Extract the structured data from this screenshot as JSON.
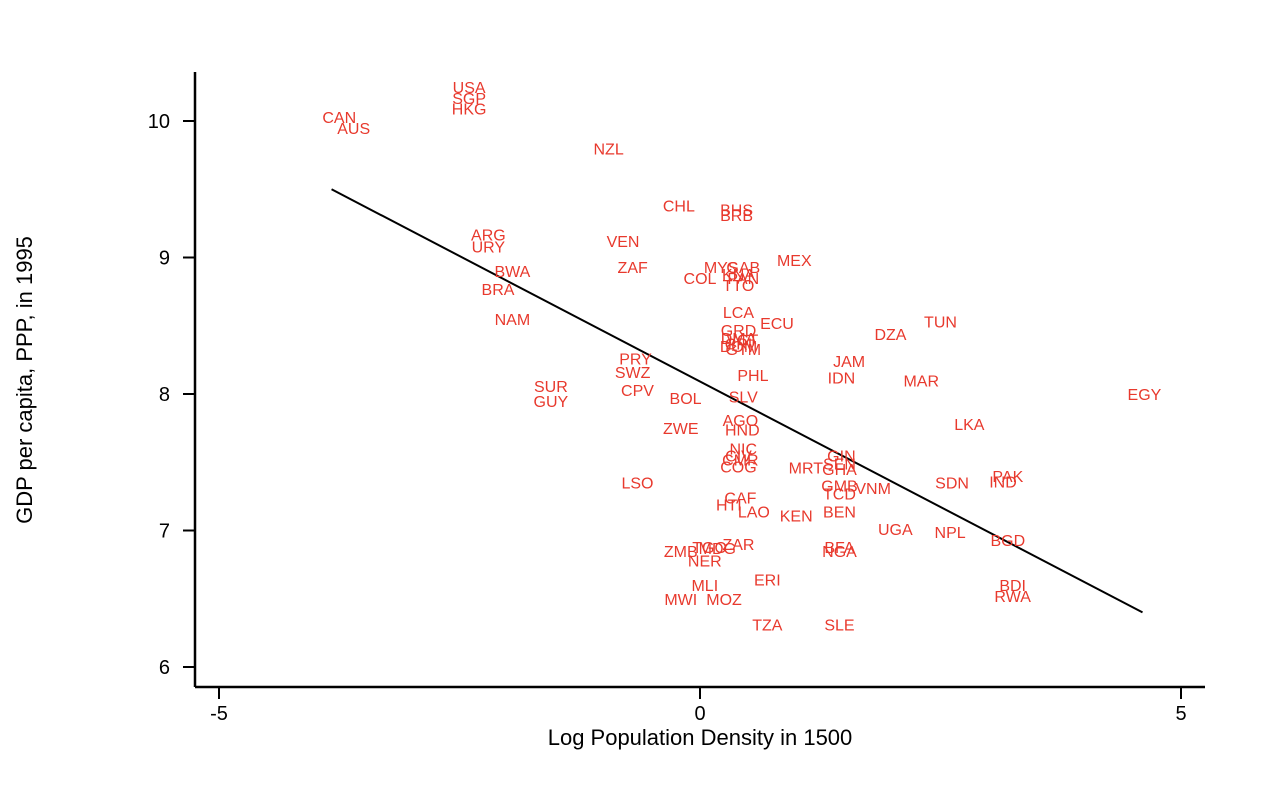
{
  "chart_data": {
    "type": "scatter",
    "xlabel": "Log Population Density in 1500",
    "ylabel": "GDP per capita, PPP, in 1995",
    "xlim": [
      -5.25,
      5.25
    ],
    "ylim": [
      5.85,
      10.4
    ],
    "xticks": [
      -5,
      0,
      5
    ],
    "xtick_labels": [
      "-5",
      "0",
      "5"
    ],
    "yticks": [
      6,
      7,
      8,
      9,
      10
    ],
    "ytick_labels": [
      "6",
      "7",
      "8",
      "9",
      "10"
    ],
    "grid": false,
    "label_color": "#e8392d",
    "line_color": "#000000",
    "fit_line": {
      "x": [
        -3.83,
        4.6
      ],
      "y": [
        9.5,
        6.4
      ]
    },
    "points": [
      {
        "label": "USA",
        "x": -2.4,
        "y": 10.25
      },
      {
        "label": "SGP",
        "x": -2.4,
        "y": 10.17
      },
      {
        "label": "HKG",
        "x": -2.4,
        "y": 10.09
      },
      {
        "label": "CAN",
        "x": -3.75,
        "y": 10.03
      },
      {
        "label": "AUS",
        "x": -3.6,
        "y": 9.95
      },
      {
        "label": "NZL",
        "x": -0.95,
        "y": 9.8
      },
      {
        "label": "CHL",
        "x": -0.22,
        "y": 9.38
      },
      {
        "label": "BHS",
        "x": 0.38,
        "y": 9.35
      },
      {
        "label": "BRB",
        "x": 0.38,
        "y": 9.31
      },
      {
        "label": "ARG",
        "x": -2.2,
        "y": 9.17
      },
      {
        "label": "URY",
        "x": -2.2,
        "y": 9.08
      },
      {
        "label": "VEN",
        "x": -0.8,
        "y": 9.12
      },
      {
        "label": "MEX",
        "x": 0.98,
        "y": 8.98
      },
      {
        "label": "MYS",
        "x": 0.22,
        "y": 8.93
      },
      {
        "label": "GAB",
        "x": 0.45,
        "y": 8.93
      },
      {
        "label": "KNA",
        "x": 0.4,
        "y": 8.88
      },
      {
        "label": "PAN",
        "x": 0.45,
        "y": 8.85
      },
      {
        "label": "TTO",
        "x": 0.4,
        "y": 8.8
      },
      {
        "label": "ZAF",
        "x": -0.7,
        "y": 8.93
      },
      {
        "label": "COL",
        "x": 0.0,
        "y": 8.85
      },
      {
        "label": "BWA",
        "x": -1.95,
        "y": 8.9
      },
      {
        "label": "BRA",
        "x": -2.1,
        "y": 8.77
      },
      {
        "label": "NAM",
        "x": -1.95,
        "y": 8.55
      },
      {
        "label": "LCA",
        "x": 0.4,
        "y": 8.6
      },
      {
        "label": "ECU",
        "x": 0.8,
        "y": 8.52
      },
      {
        "label": "TUN",
        "x": 2.5,
        "y": 8.53
      },
      {
        "label": "DZA",
        "x": 1.98,
        "y": 8.44
      },
      {
        "label": "GRD",
        "x": 0.4,
        "y": 8.47
      },
      {
        "label": "DMA",
        "x": 0.4,
        "y": 8.41
      },
      {
        "label": "VCT",
        "x": 0.44,
        "y": 8.4
      },
      {
        "label": "CRI",
        "x": 0.4,
        "y": 8.37
      },
      {
        "label": "DOM",
        "x": 0.4,
        "y": 8.35
      },
      {
        "label": "GTM",
        "x": 0.45,
        "y": 8.33
      },
      {
        "label": "PRY",
        "x": -0.67,
        "y": 8.26
      },
      {
        "label": "SWZ",
        "x": -0.7,
        "y": 8.16
      },
      {
        "label": "JAM",
        "x": 1.55,
        "y": 8.24
      },
      {
        "label": "PHL",
        "x": 0.55,
        "y": 8.14
      },
      {
        "label": "IDN",
        "x": 1.47,
        "y": 8.12
      },
      {
        "label": "MAR",
        "x": 2.3,
        "y": 8.1
      },
      {
        "label": "SUR",
        "x": -1.55,
        "y": 8.06
      },
      {
        "label": "CPV",
        "x": -0.65,
        "y": 8.03
      },
      {
        "label": "EGY",
        "x": 4.62,
        "y": 8.0
      },
      {
        "label": "BOL",
        "x": -0.15,
        "y": 7.97
      },
      {
        "label": "SLV",
        "x": 0.45,
        "y": 7.98
      },
      {
        "label": "GUY",
        "x": -1.55,
        "y": 7.95
      },
      {
        "label": "AGO",
        "x": 0.42,
        "y": 7.81
      },
      {
        "label": "LKA",
        "x": 2.8,
        "y": 7.78
      },
      {
        "label": "ZWE",
        "x": -0.2,
        "y": 7.75
      },
      {
        "label": "HND",
        "x": 0.44,
        "y": 7.74
      },
      {
        "label": "NIC",
        "x": 0.45,
        "y": 7.6
      },
      {
        "label": "CIV",
        "x": 0.4,
        "y": 7.55
      },
      {
        "label": "GIN",
        "x": 1.47,
        "y": 7.55
      },
      {
        "label": "CMR",
        "x": 0.42,
        "y": 7.52
      },
      {
        "label": "SEN",
        "x": 1.45,
        "y": 7.49
      },
      {
        "label": "COG",
        "x": 0.4,
        "y": 7.47
      },
      {
        "label": "MRT",
        "x": 1.1,
        "y": 7.46
      },
      {
        "label": "GHA",
        "x": 1.45,
        "y": 7.45
      },
      {
        "label": "PAK",
        "x": 3.2,
        "y": 7.4
      },
      {
        "label": "IND",
        "x": 3.15,
        "y": 7.36
      },
      {
        "label": "LSO",
        "x": -0.65,
        "y": 7.35
      },
      {
        "label": "SDN",
        "x": 2.62,
        "y": 7.35
      },
      {
        "label": "GMB",
        "x": 1.45,
        "y": 7.33
      },
      {
        "label": "VNM",
        "x": 1.8,
        "y": 7.31
      },
      {
        "label": "TCD",
        "x": 1.45,
        "y": 7.27
      },
      {
        "label": "CAF",
        "x": 0.42,
        "y": 7.24
      },
      {
        "label": "HTI",
        "x": 0.3,
        "y": 7.19
      },
      {
        "label": "LAO",
        "x": 0.56,
        "y": 7.14
      },
      {
        "label": "BEN",
        "x": 1.45,
        "y": 7.14
      },
      {
        "label": "KEN",
        "x": 1.0,
        "y": 7.11
      },
      {
        "label": "UGA",
        "x": 2.03,
        "y": 7.01
      },
      {
        "label": "NPL",
        "x": 2.6,
        "y": 6.99
      },
      {
        "label": "BGD",
        "x": 3.2,
        "y": 6.93
      },
      {
        "label": "ZAR",
        "x": 0.4,
        "y": 6.9
      },
      {
        "label": "BFA",
        "x": 1.45,
        "y": 6.88
      },
      {
        "label": "TGO",
        "x": 0.1,
        "y": 6.88
      },
      {
        "label": "MDG",
        "x": 0.18,
        "y": 6.87
      },
      {
        "label": "ZMB",
        "x": -0.2,
        "y": 6.85
      },
      {
        "label": "NGA",
        "x": 1.45,
        "y": 6.85
      },
      {
        "label": "NER",
        "x": 0.05,
        "y": 6.78
      },
      {
        "label": "ERI",
        "x": 0.7,
        "y": 6.64
      },
      {
        "label": "MLI",
        "x": 0.05,
        "y": 6.6
      },
      {
        "label": "BDI",
        "x": 3.25,
        "y": 6.6
      },
      {
        "label": "MWI",
        "x": -0.2,
        "y": 6.5
      },
      {
        "label": "MOZ",
        "x": 0.25,
        "y": 6.5
      },
      {
        "label": "RWA",
        "x": 3.25,
        "y": 6.52
      },
      {
        "label": "TZA",
        "x": 0.7,
        "y": 6.31
      },
      {
        "label": "SLE",
        "x": 1.45,
        "y": 6.31
      }
    ]
  }
}
